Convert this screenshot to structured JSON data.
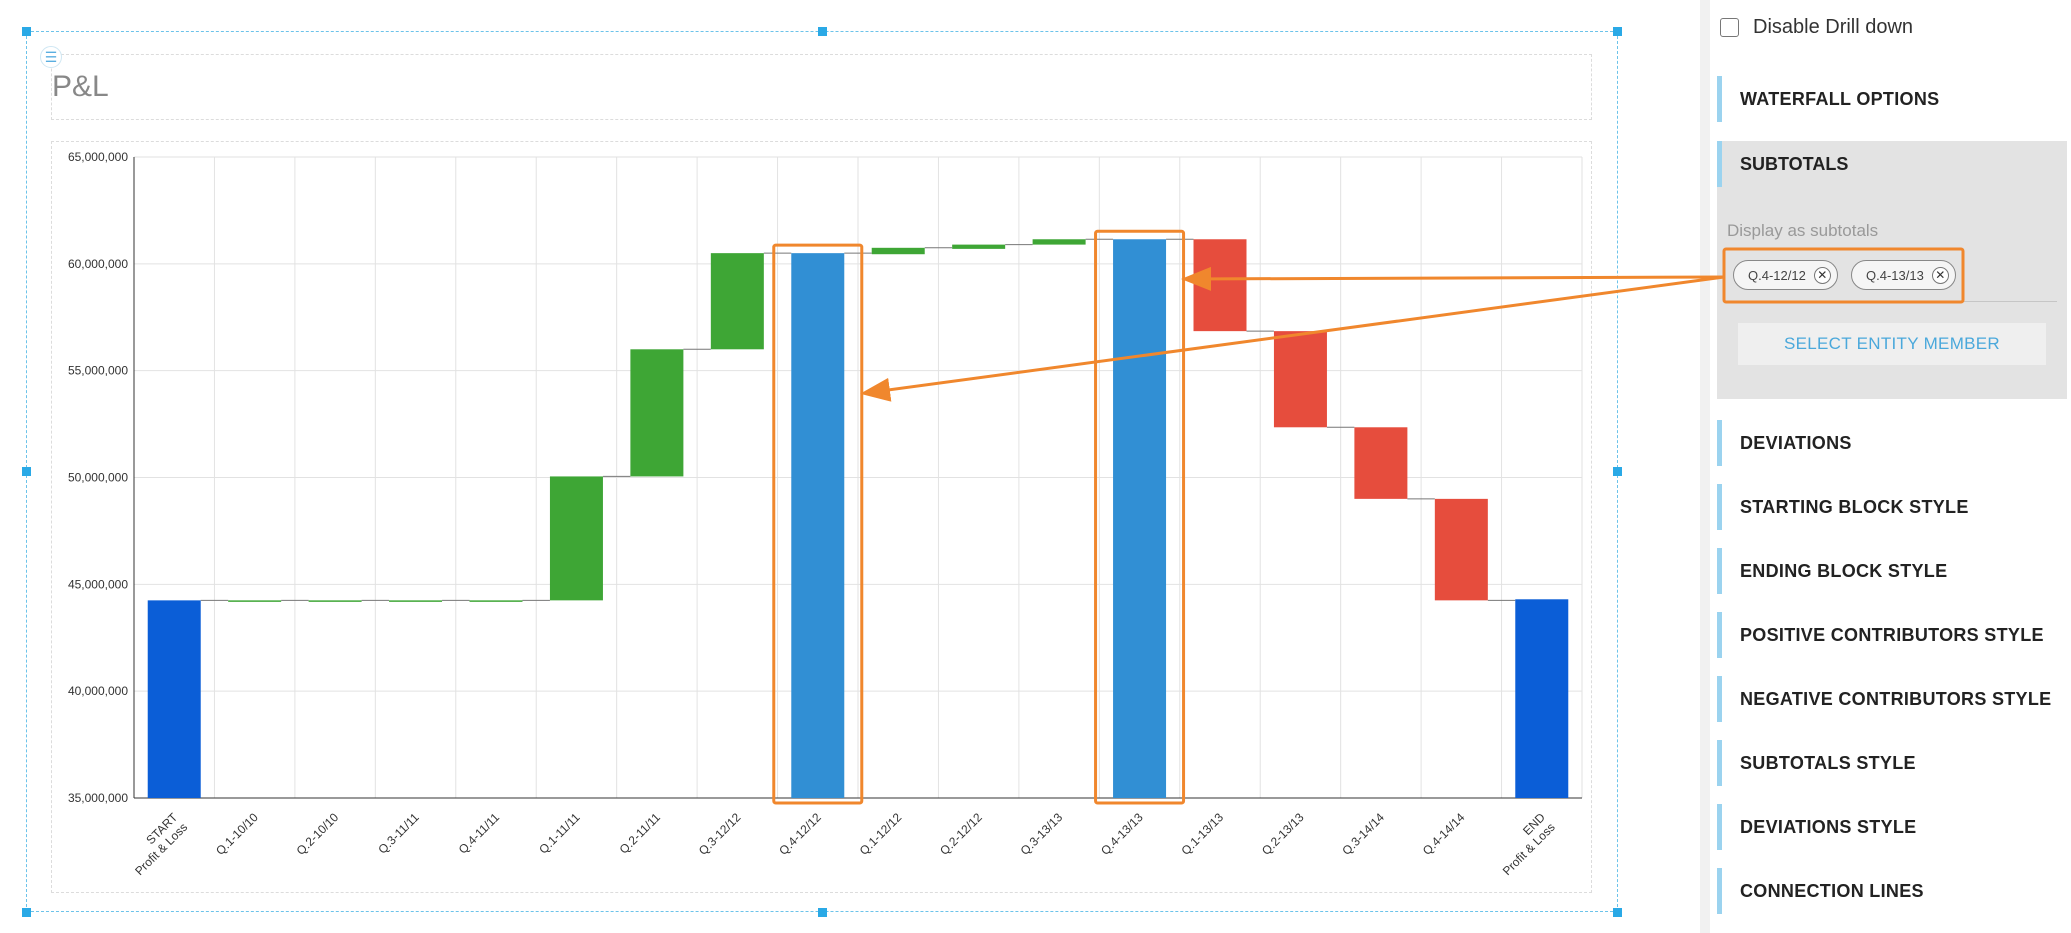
{
  "page": {
    "title": "P&L",
    "widget_icon": "hamburger-icon"
  },
  "chart_data": {
    "type": "waterfall",
    "title": "P&L",
    "ylim": [
      35000000,
      65000000
    ],
    "yticks": [
      35000000,
      40000000,
      45000000,
      50000000,
      55000000,
      60000000,
      65000000
    ],
    "ytick_labels": [
      "35,000,000",
      "40,000,000",
      "45,000,000",
      "50,000,000",
      "55,000,000",
      "60,000,000",
      "65,000,000"
    ],
    "grid": true,
    "categories": [
      {
        "label": [
          "START",
          "Profit & Loss"
        ],
        "kind": "start",
        "low": 35000000,
        "high": 44250000
      },
      {
        "label": [
          "Q.1-10/10"
        ],
        "kind": "pos",
        "low": 44250000,
        "high": 44250000
      },
      {
        "label": [
          "Q.2-10/10"
        ],
        "kind": "pos",
        "low": 44250000,
        "high": 44250000
      },
      {
        "label": [
          "Q.3-11/11"
        ],
        "kind": "pos",
        "low": 44250000,
        "high": 44250000
      },
      {
        "label": [
          "Q.4-11/11"
        ],
        "kind": "pos",
        "low": 44250000,
        "high": 44250000
      },
      {
        "label": [
          "Q.1-11/11"
        ],
        "kind": "pos",
        "low": 44250000,
        "high": 50050000
      },
      {
        "label": [
          "Q.2-11/11"
        ],
        "kind": "pos",
        "low": 50050000,
        "high": 56000000
      },
      {
        "label": [
          "Q.3-12/12"
        ],
        "kind": "pos",
        "low": 56000000,
        "high": 60500000
      },
      {
        "label": [
          "Q.4-12/12"
        ],
        "kind": "subtotal",
        "low": 35000000,
        "high": 60500000
      },
      {
        "label": [
          "Q.1-12/12"
        ],
        "kind": "pos",
        "low": 60450000,
        "high": 60750000
      },
      {
        "label": [
          "Q.2-12/12"
        ],
        "kind": "pos",
        "low": 60700000,
        "high": 60900000
      },
      {
        "label": [
          "Q.3-13/13"
        ],
        "kind": "pos",
        "low": 60900000,
        "high": 61150000
      },
      {
        "label": [
          "Q.4-13/13"
        ],
        "kind": "subtotal",
        "low": 35000000,
        "high": 61150000
      },
      {
        "label": [
          "Q.1-13/13"
        ],
        "kind": "neg",
        "low": 56850000,
        "high": 61150000
      },
      {
        "label": [
          "Q.2-13/13"
        ],
        "kind": "neg",
        "low": 52350000,
        "high": 56850000
      },
      {
        "label": [
          "Q.3-14/14"
        ],
        "kind": "neg",
        "low": 49000000,
        "high": 52350000
      },
      {
        "label": [
          "Q.4-14/14"
        ],
        "kind": "neg",
        "low": 44250000,
        "high": 49000000
      },
      {
        "label": [
          "END",
          "Profit & Loss"
        ],
        "kind": "end",
        "low": 35000000,
        "high": 44300000
      }
    ],
    "highlighted": [
      "Q.4-12/12",
      "Q.4-13/13"
    ],
    "colors": {
      "start": "#0b5ed7",
      "end": "#0b5ed7",
      "pos": "#3ea635",
      "neg": "#e64d3d",
      "subtotal": "#318fd4",
      "highlight": "#f0872d",
      "selection": "#2aa9e6"
    }
  },
  "sidebar": {
    "disable_drill_down": "Disable Drill down",
    "waterfall_options": "WATERFALL OPTIONS",
    "subtotals": "SUBTOTALS",
    "display_as_subtotals": "Display as subtotals",
    "chips": [
      {
        "label": "Q.4-12/12"
      },
      {
        "label": "Q.4-13/13"
      }
    ],
    "select_entity_member": "SELECT ENTITY MEMBER",
    "sections": [
      "DEVIATIONS",
      "STARTING BLOCK STYLE",
      "ENDING BLOCK STYLE",
      "POSITIVE CONTRIBUTORS STYLE",
      "NEGATIVE CONTRIBUTORS STYLE",
      "SUBTOTALS STYLE",
      "DEVIATIONS STYLE",
      "CONNECTION LINES"
    ]
  }
}
